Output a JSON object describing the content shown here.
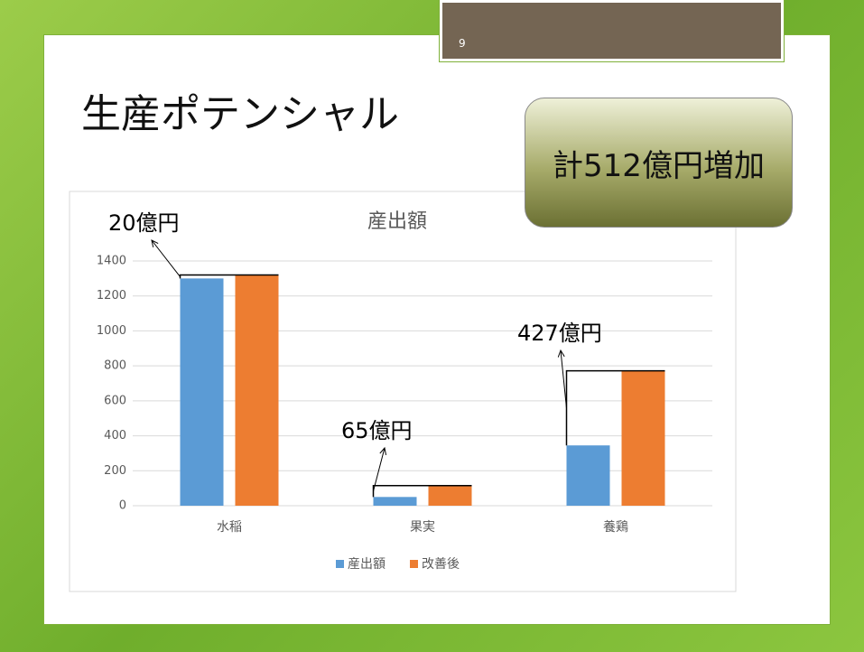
{
  "slide": {
    "page_number": "9",
    "title": "生産ポテンシャル",
    "callout": "計512億円増加"
  },
  "chart_data": {
    "type": "bar",
    "title": "産出額",
    "categories": [
      "水稲",
      "果実",
      "養鶏"
    ],
    "series": [
      {
        "name": "産出額",
        "color": "#5b9bd5",
        "values": [
          1300,
          50,
          345
        ]
      },
      {
        "name": "改善後",
        "color": "#ed7d31",
        "values": [
          1320,
          115,
          772
        ]
      }
    ],
    "ylim": [
      0,
      1400
    ],
    "yticks": [
      0,
      200,
      400,
      600,
      800,
      1000,
      1200,
      1400
    ],
    "grid": true,
    "legend": "bottom",
    "annotations": [
      "20億円",
      "65億円",
      "427億円"
    ]
  }
}
